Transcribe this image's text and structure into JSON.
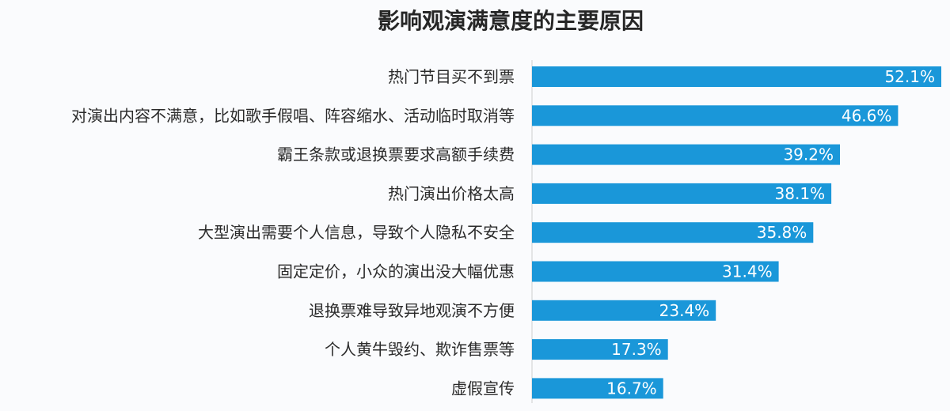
{
  "chart_data": {
    "type": "bar",
    "orientation": "horizontal",
    "title": "影响观演满意度的主要原因",
    "categories": [
      "热门节目买不到票",
      "对演出内容不满意，比如歌手假唱、阵容缩水、活动临时取消等",
      "霸王条款或退换票要求高额手续费",
      "热门演出价格太高",
      "大型演出需要个人信息，导致个人隐私不安全",
      "固定定价，小众的演出没大幅优惠",
      "退换票难导致异地观演不方便",
      "个人黄牛毁约、欺诈售票等",
      "虚假宣传"
    ],
    "values": [
      52.1,
      46.6,
      39.2,
      38.1,
      35.8,
      31.4,
      23.4,
      17.3,
      16.7
    ],
    "value_labels": [
      "52.1%",
      "46.6%",
      "39.2%",
      "38.1%",
      "35.8%",
      "31.4%",
      "23.4%",
      "17.3%",
      "16.7%"
    ],
    "value_suffix": "%",
    "xlim": [
      0,
      52.1
    ],
    "grid": false,
    "legend": "none",
    "colors": {
      "bar": "#1a97d9",
      "axis": "#cfcfcf",
      "value_text": "#ffffff",
      "category_text": "#2b2b2b",
      "title_text": "#262626",
      "background": "#fafbfd"
    }
  }
}
